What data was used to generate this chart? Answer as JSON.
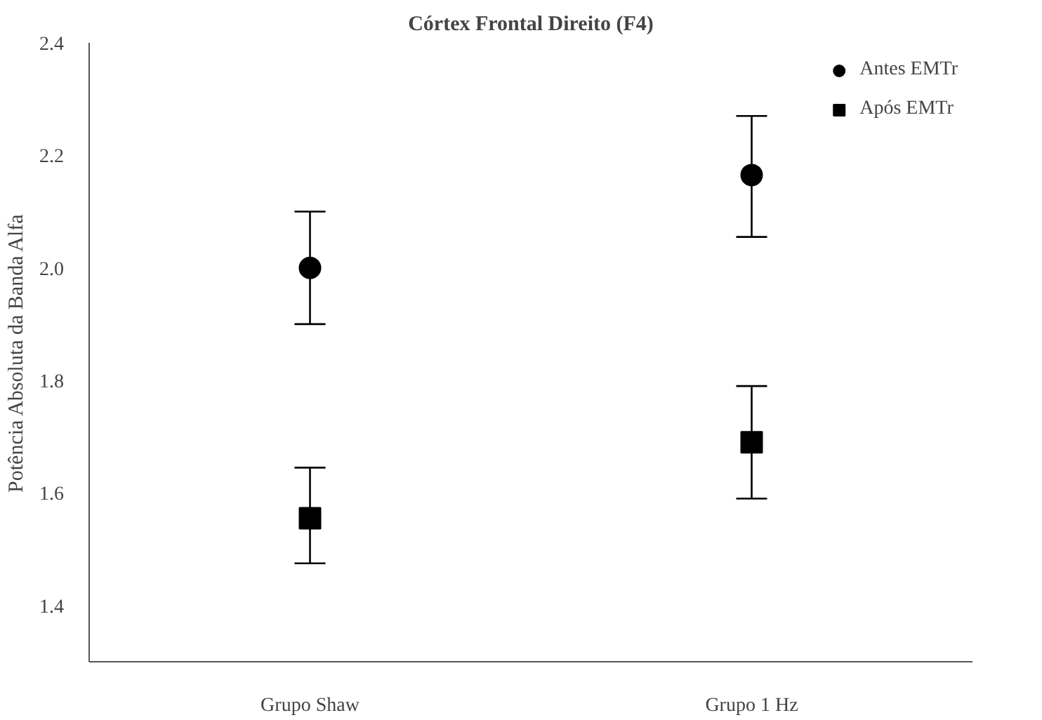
{
  "chart_data": {
    "type": "scatter",
    "title": "Córtex Frontal Direito (F4)",
    "ylabel": "Potência Absoluta da Banda Alfa",
    "categories": [
      "Grupo Shaw",
      "Grupo 1 Hz"
    ],
    "series": [
      {
        "name": "Antes EMTr",
        "color": "#000000",
        "marker": "circle",
        "values": [
          2.0,
          2.165
        ],
        "errors": [
          [
            1.9,
            2.1
          ],
          [
            2.055,
            2.27
          ]
        ]
      },
      {
        "name": "Após EMTr",
        "color": "#000000",
        "marker": "square",
        "values": [
          1.555,
          1.69
        ],
        "errors": [
          [
            1.475,
            1.645
          ],
          [
            1.59,
            1.79
          ]
        ]
      }
    ],
    "ylim": [
      1.3,
      2.4
    ],
    "yticks": [
      {
        "value": 1.4,
        "label": "1.4"
      },
      {
        "value": 1.6,
        "label": "1.6"
      },
      {
        "value": 1.8,
        "label": "1.8"
      },
      {
        "value": 2.0,
        "label": "2.0"
      },
      {
        "value": 2.2,
        "label": "2.2"
      },
      {
        "value": 2.4,
        "label": "2.4"
      }
    ],
    "grid": false,
    "legend": "top right"
  }
}
